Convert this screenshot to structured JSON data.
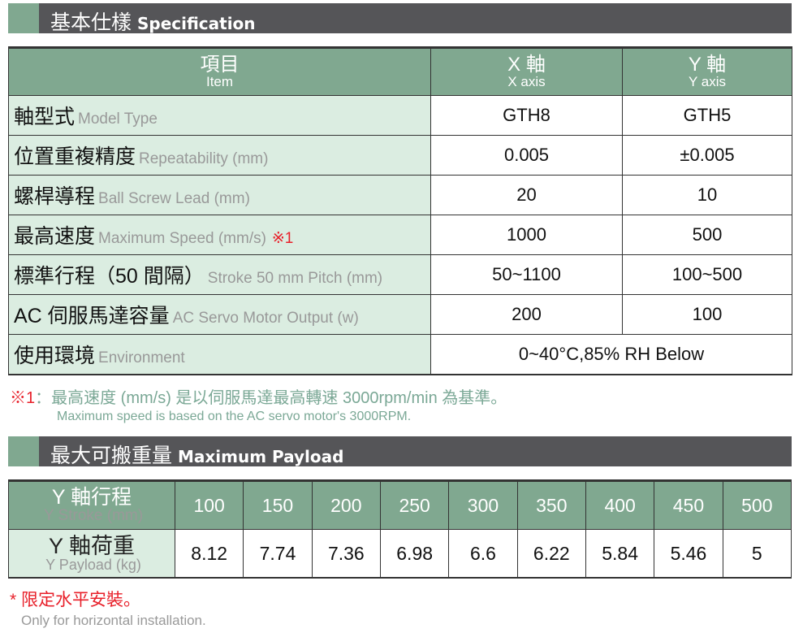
{
  "spec_section": {
    "title_zh": "基本仕樣",
    "title_en": "Specification"
  },
  "spec_table": {
    "headers": [
      {
        "zh": "項目",
        "en": "Item"
      },
      {
        "zh": "X 軸",
        "en": "X axis"
      },
      {
        "zh": "Y 軸",
        "en": "Y axis"
      }
    ],
    "rows": [
      {
        "zh": "軸型式",
        "en": "Model Type",
        "mark": "",
        "x": "GTH8",
        "y": "GTH5"
      },
      {
        "zh": "位置重複精度",
        "en": "Repeatability (mm)",
        "mark": "",
        "x": "0.005",
        "y": "±0.005"
      },
      {
        "zh": "螺桿導程",
        "en": "Ball Screw Lead (mm)",
        "mark": "",
        "x": "20",
        "y": "10"
      },
      {
        "zh": "最高速度",
        "en": "Maximum Speed (mm/s)",
        "mark": "※1",
        "x": "1000",
        "y": "500"
      },
      {
        "zh": "標準行程（50 間隔）",
        "en": "Stroke 50 mm Pitch (mm)",
        "mark": "",
        "x": "50~1100",
        "y": "100~500"
      },
      {
        "zh": "AC 伺服馬達容量",
        "en": "AC Servo Motor Output (w)",
        "mark": "",
        "x": "200",
        "y": "100"
      },
      {
        "zh": "使用環境",
        "en": "Environment",
        "mark": "",
        "both": "0~40°C,85% RH Below"
      }
    ]
  },
  "footnote1": {
    "mark": "※1",
    "sep": "：",
    "zh": "最高速度 (mm/s) 是以伺服馬達最高轉速 3000rpm/min 為基準。",
    "en": "Maximum speed is based on the AC servo motor's 3000RPM."
  },
  "payload_section": {
    "title_zh": "最大可搬重量",
    "title_en": "Maximum Payload"
  },
  "payload_table": {
    "stroke_label": {
      "zh": "Y 軸行程",
      "en": "Y Stroke (mm)"
    },
    "payload_label": {
      "zh": "Y 軸荷重",
      "en": "Y Payload (kg)"
    },
    "strokes": [
      "100",
      "150",
      "200",
      "250",
      "300",
      "350",
      "400",
      "450",
      "500"
    ],
    "payloads": [
      "8.12",
      "7.74",
      "7.36",
      "6.98",
      "6.6",
      "6.22",
      "5.84",
      "5.46",
      "5"
    ]
  },
  "footnote2": {
    "mark": "*",
    "zh": "限定水平安裝。",
    "en": "Only for horizontal installation."
  },
  "colors": {
    "header_green": "#80a890",
    "label_bg": "#dbede1",
    "title_bar": "#555558",
    "accent_red": "#e8202a",
    "note_green": "#7ba896"
  }
}
